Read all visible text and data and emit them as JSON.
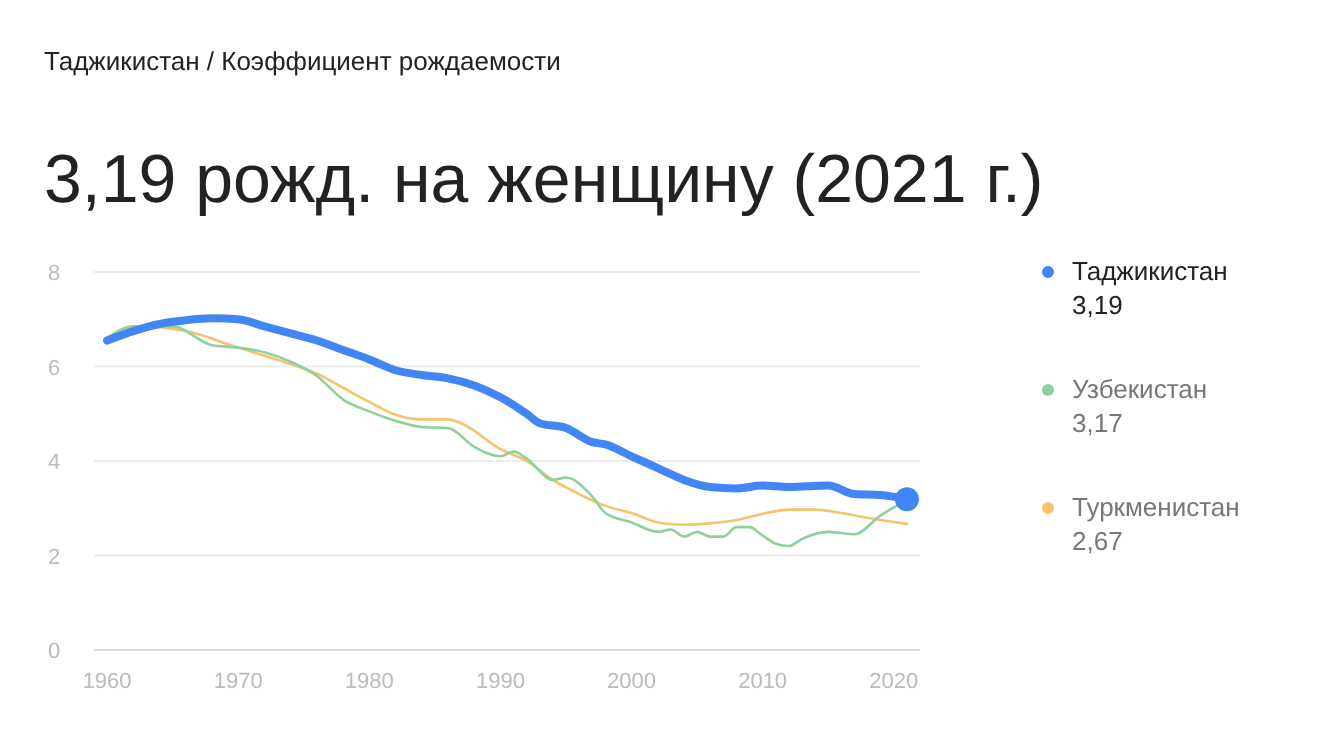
{
  "chart_data": {
    "type": "line",
    "title": "3,19 рожд. на женщину (2021 г.)",
    "subtitle": "Таджикистан / Коэффициент рождаемости",
    "xlim": [
      1959,
      2022
    ],
    "xticks": [
      1960,
      1970,
      1980,
      1990,
      2000,
      2010,
      2020
    ],
    "ylim": [
      0,
      8
    ],
    "yticks": [
      0,
      2,
      4,
      6,
      8
    ],
    "grid": "y",
    "legend": "right",
    "annotations": [
      "3,19",
      "3,17",
      "2,67"
    ],
    "series": [
      {
        "name": "Таджикистан",
        "color": "#4285f4",
        "x": [
          1960,
          1962,
          1964,
          1966,
          1968,
          1970,
          1972,
          1974,
          1976,
          1978,
          1980,
          1982,
          1984,
          1986,
          1988,
          1990,
          1992,
          1993,
          1995,
          1997,
          1998,
          2000,
          2002,
          2004,
          2006,
          2008,
          2010,
          2012,
          2015,
          2017,
          2019,
          2021
        ],
        "values": [
          6.55,
          6.75,
          6.9,
          6.98,
          7.02,
          7.0,
          6.85,
          6.7,
          6.55,
          6.35,
          6.15,
          5.92,
          5.82,
          5.75,
          5.6,
          5.35,
          5.0,
          4.8,
          4.7,
          4.4,
          4.35,
          4.1,
          3.85,
          3.6,
          3.45,
          3.42,
          3.48,
          3.45,
          3.48,
          3.3,
          3.28,
          3.19
        ]
      },
      {
        "name": "Узбекистан",
        "color": "#8fd19e",
        "x": [
          1960,
          1962,
          1965,
          1968,
          1970,
          1972,
          1974,
          1976,
          1978,
          1980,
          1982,
          1984,
          1986,
          1988,
          1990,
          1991,
          1992,
          1994,
          1995,
          1997,
          1998,
          2000,
          2002,
          2003,
          2004,
          2005,
          2006,
          2007,
          2008,
          2009,
          2010,
          2011,
          2012,
          2013,
          2015,
          2017,
          2019,
          2021
        ],
        "values": [
          6.6,
          6.85,
          6.85,
          6.45,
          6.4,
          6.3,
          6.1,
          5.8,
          5.3,
          5.05,
          4.85,
          4.72,
          4.7,
          4.3,
          4.1,
          4.2,
          4.05,
          3.6,
          3.65,
          3.25,
          2.9,
          2.7,
          2.5,
          2.55,
          2.4,
          2.5,
          2.4,
          2.4,
          2.6,
          2.6,
          2.42,
          2.25,
          2.2,
          2.35,
          2.5,
          2.45,
          2.85,
          3.17
        ]
      },
      {
        "name": "Туркменистан",
        "color": "#f7c26b",
        "x": [
          1960,
          1963,
          1966,
          1970,
          1974,
          1976,
          1978,
          1980,
          1982,
          1984,
          1986,
          1987,
          1990,
          1992,
          1994,
          1996,
          1998,
          2000,
          2002,
          2004,
          2006,
          2008,
          2010,
          2012,
          2014,
          2016,
          2018,
          2021
        ],
        "values": [
          6.6,
          6.85,
          6.75,
          6.4,
          6.05,
          5.85,
          5.55,
          5.25,
          4.98,
          4.88,
          4.88,
          4.8,
          4.25,
          4.0,
          3.6,
          3.3,
          3.05,
          2.9,
          2.7,
          2.65,
          2.68,
          2.75,
          2.88,
          2.97,
          2.97,
          2.9,
          2.8,
          2.67
        ]
      }
    ]
  }
}
